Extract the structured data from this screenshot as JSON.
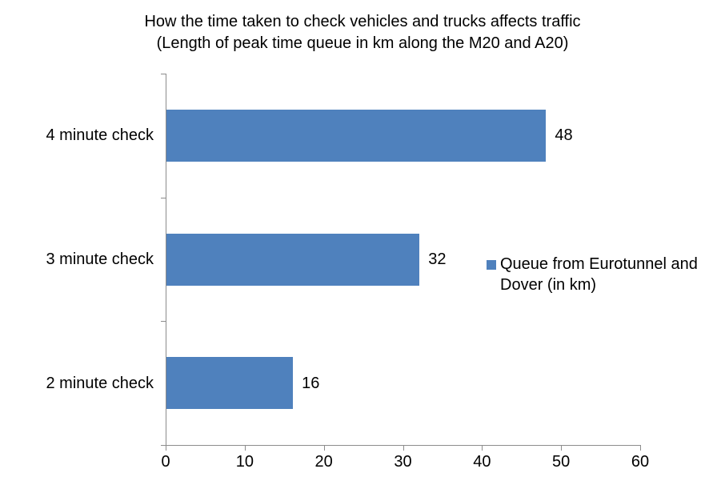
{
  "title": {
    "line1": "How the time taken to check vehicles and trucks affects traffic",
    "line2": "(Length of peak time queue in km along the M20 and A20)"
  },
  "legend": {
    "label": "Queue from Eurotunnel and Dover (in km)",
    "marker_color": "#4F81BD"
  },
  "chart_data": {
    "type": "bar",
    "orientation": "horizontal",
    "title": "How the time taken to check vehicles and trucks affects traffic (Length of peak time queue in km along the M20 and A20)",
    "categories": [
      "4 minute check",
      "3 minute check",
      "2 minute check"
    ],
    "series": [
      {
        "name": "Queue from Eurotunnel and Dover (in km)",
        "values": [
          48,
          32,
          16
        ]
      }
    ],
    "data_labels": [
      "48",
      "32",
      "16"
    ],
    "xlabel": "",
    "ylabel": "",
    "xlim": [
      0,
      60
    ],
    "xticks": [
      "0",
      "10",
      "20",
      "30",
      "40",
      "50",
      "60"
    ],
    "grid": false,
    "legend_position": "right",
    "bar_color": "#4F81BD",
    "axis_color": "#8C8C8C",
    "background_color": "#FFFFFF",
    "text_color": "#000000"
  }
}
